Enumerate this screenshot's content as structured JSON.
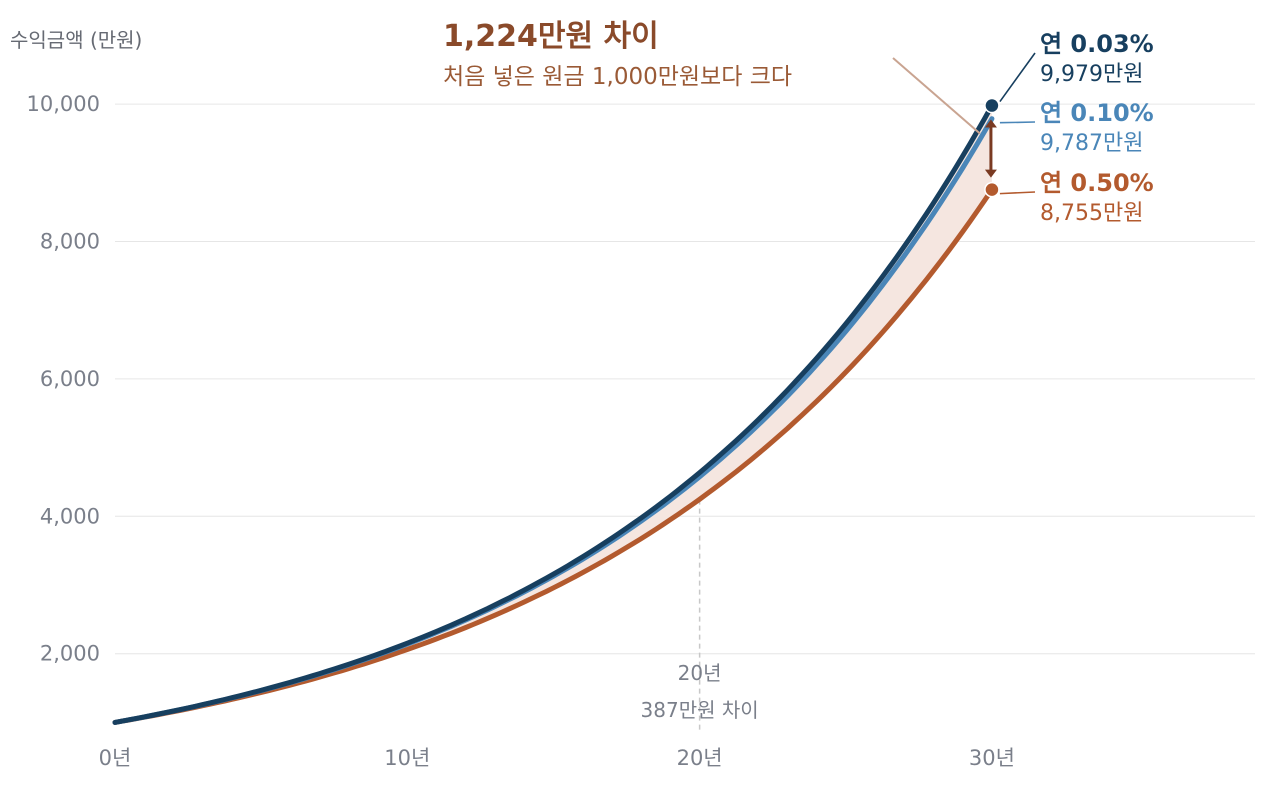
{
  "chart_data": {
    "type": "line",
    "ylabel": "수익금액 (만원)",
    "y_ticks": [
      {
        "value": 2000,
        "label": "2,000"
      },
      {
        "value": 4000,
        "label": "4,000"
      },
      {
        "value": 6000,
        "label": "6,000"
      },
      {
        "value": 8000,
        "label": "8,000"
      },
      {
        "value": 10000,
        "label": "10,000"
      }
    ],
    "x_ticks": [
      {
        "value": 0,
        "label": "0년"
      },
      {
        "value": 10,
        "label": "10년"
      },
      {
        "value": 20,
        "label": "20년"
      },
      {
        "value": 30,
        "label": "30년"
      }
    ],
    "xlim": [
      0,
      39
    ],
    "ylim": [
      700,
      10700
    ],
    "grid": true,
    "series": [
      {
        "name": "연 0.03%",
        "color": "#173f5f",
        "start": 1000,
        "end_year": 30,
        "end_value": 9979,
        "end_label": "9,979만원"
      },
      {
        "name": "연 0.10%",
        "color": "#4a86b8",
        "start": 1000,
        "end_year": 30,
        "end_value": 9787,
        "end_label": "9,787만원"
      },
      {
        "name": "연 0.50%",
        "color": "#b35a2e",
        "start": 1000,
        "end_year": 30,
        "end_value": 8755,
        "end_label": "8,755만원"
      }
    ],
    "annotations": {
      "headline": "1,224만원 차이",
      "subline": "처음 넣은 원금 1,000만원보다 크다",
      "mid_year": 20,
      "mid_year_label": "20년",
      "mid_diff_label": "387만원 차이"
    },
    "colors": {
      "gap_fill": "#f5e6e0",
      "annotation": "#8a4a2a",
      "arrow": "#7a3a22"
    }
  }
}
